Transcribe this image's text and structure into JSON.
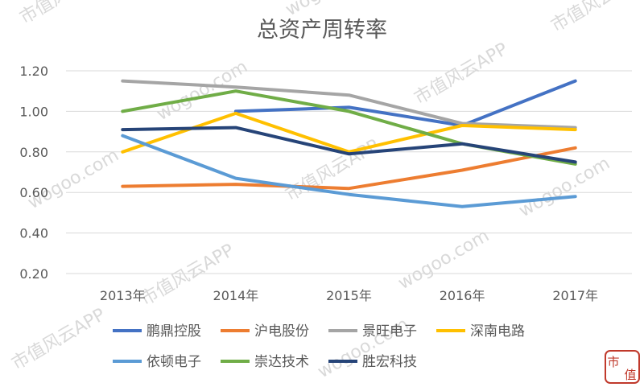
{
  "chart_data": {
    "type": "line",
    "title": "总资产周转率",
    "categories": [
      "2013年",
      "2014年",
      "2015年",
      "2016年",
      "2017年"
    ],
    "ylim": [
      0.2,
      1.2
    ],
    "yticks": [
      "0.20",
      "0.40",
      "0.60",
      "0.80",
      "1.00",
      "1.20"
    ],
    "grid": true,
    "legend": "bottom",
    "series": [
      {
        "name": "鹏鼎控股",
        "color": "#4472c4",
        "values": [
          null,
          1.0,
          1.02,
          0.93,
          1.15
        ]
      },
      {
        "name": "沪电股份",
        "color": "#ed7d31",
        "values": [
          0.63,
          0.64,
          0.62,
          0.71,
          0.82
        ]
      },
      {
        "name": "景旺电子",
        "color": "#a5a5a5",
        "values": [
          1.15,
          1.12,
          1.08,
          0.94,
          0.92
        ]
      },
      {
        "name": "深南电路",
        "color": "#ffc000",
        "values": [
          0.8,
          0.99,
          0.8,
          0.93,
          0.91
        ]
      },
      {
        "name": "依顿电子",
        "color": "#5b9bd5",
        "values": [
          0.88,
          0.67,
          0.59,
          0.53,
          0.58
        ]
      },
      {
        "name": "崇达技术",
        "color": "#70ad47",
        "values": [
          1.0,
          1.1,
          1.0,
          0.84,
          0.74
        ]
      },
      {
        "name": "胜宏科技",
        "color": "#264478",
        "values": [
          0.91,
          0.92,
          0.79,
          0.84,
          0.75
        ]
      }
    ]
  },
  "watermark": {
    "lines": [
      "市值风云APP",
      "wogoo.com"
    ],
    "logo_text": [
      "市",
      "值"
    ],
    "logo_color": "#c0392b"
  }
}
